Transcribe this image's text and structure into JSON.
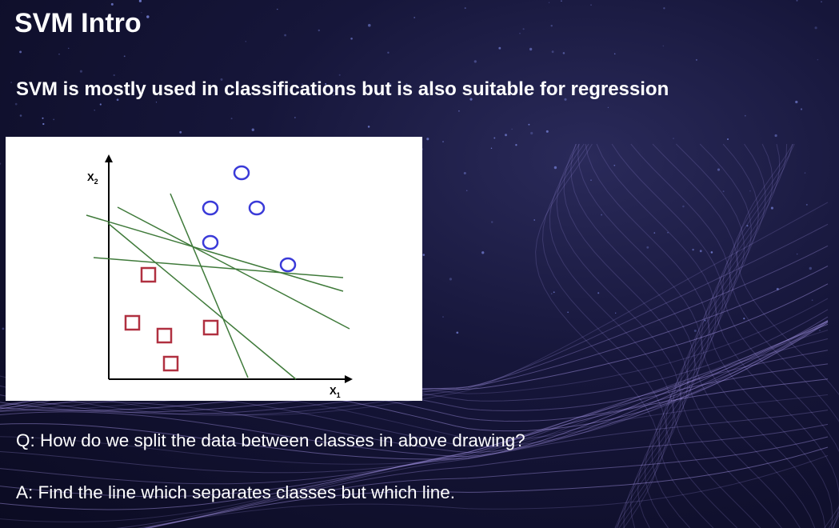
{
  "slide": {
    "title": "SVM Intro",
    "subtitle": "SVM is mostly used in classifications but is also suitable for regression",
    "question": "Q: How do we split the data between classes in above drawing?",
    "answer": "A: Find the line which separates classes but which line."
  },
  "figure": {
    "x_axis_label": "X",
    "x_axis_subscript": "1",
    "y_axis_label": "X",
    "y_axis_subscript": "2",
    "circle_color": "#3a3ad8",
    "square_color": "#b03040",
    "line_color": "#3f7a3a"
  },
  "theme": {
    "background": "#0b0b22",
    "wave_color": "#b9a6ff",
    "text_color": "#ffffff"
  }
}
